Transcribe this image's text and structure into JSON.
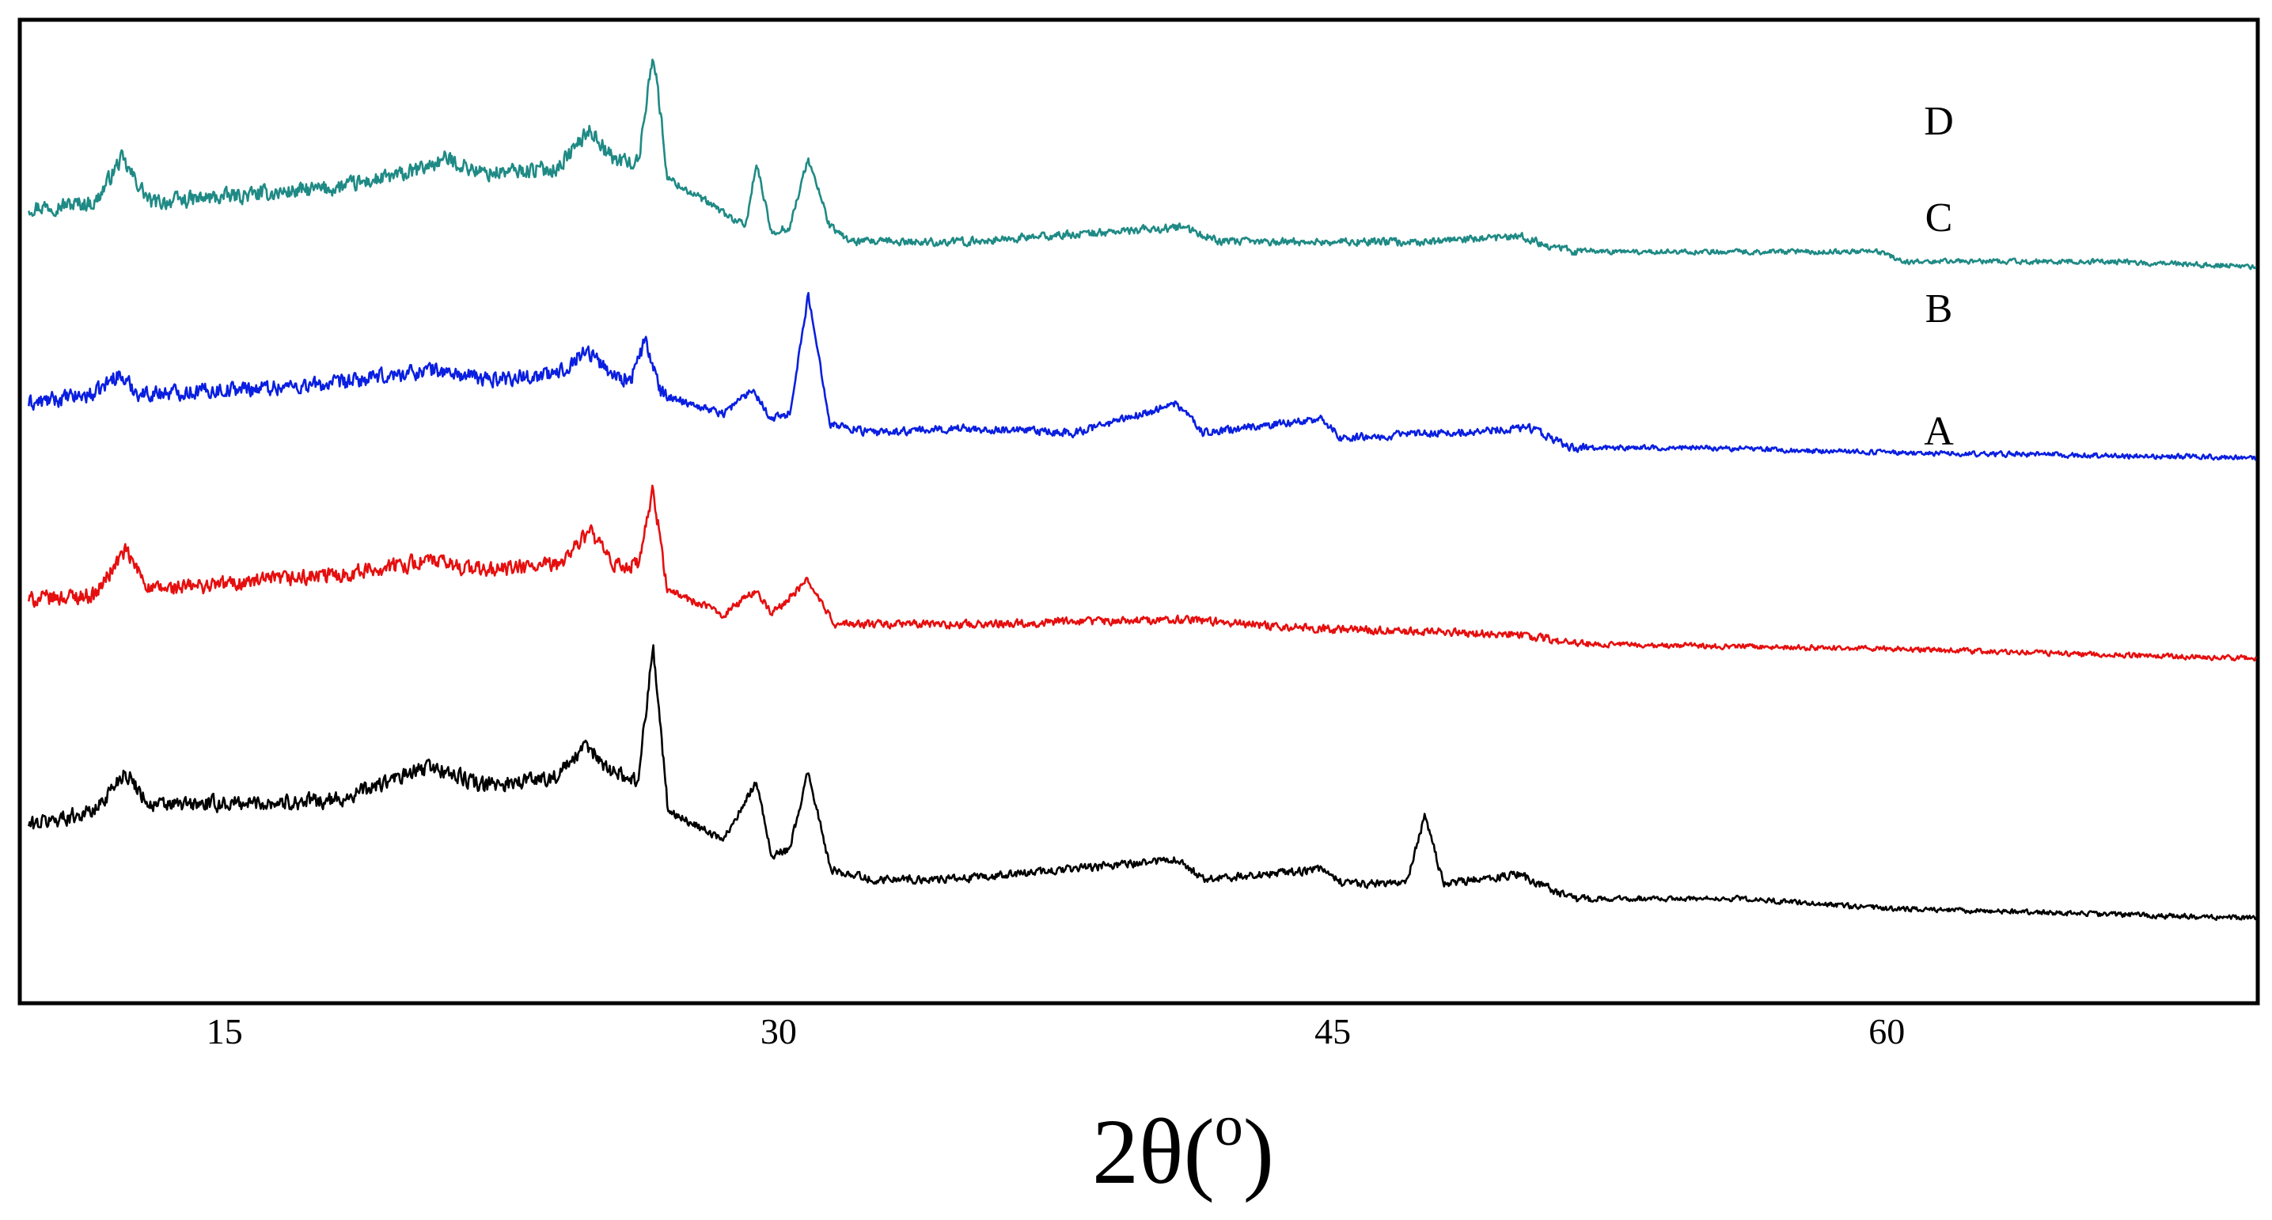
{
  "chart_data": {
    "type": "line",
    "title": "",
    "xlabel": "2θ(",
    "xlabel_superscript": "o",
    "xlabel_suffix": ")",
    "ylabel": "",
    "xlim": [
      9.5,
      70
    ],
    "ylim": [
      0,
      100
    ],
    "xticks": [
      15,
      30,
      45,
      60
    ],
    "xtick_labels": [
      "15",
      "30",
      "45",
      "60"
    ],
    "grid": false,
    "legend": "inline labels at right",
    "series": [
      {
        "name": "D",
        "color": "#1f8a85",
        "peaks": [
          {
            "x": 12.2,
            "h": 5
          },
          {
            "x": 20.6,
            "h": 3
          },
          {
            "x": 24.9,
            "h": 5
          },
          {
            "x": 26.6,
            "h": 12
          },
          {
            "x": 29.4,
            "h": 6
          },
          {
            "x": 30.8,
            "h": 7
          },
          {
            "x": 40.9,
            "h": 2
          },
          {
            "x": 47.5,
            "h": 1
          },
          {
            "x": 50.1,
            "h": 1
          },
          {
            "x": 59.8,
            "h": 1
          }
        ],
        "points": [
          [
            9.7,
            81
          ],
          [
            11.5,
            81.5
          ],
          [
            12.2,
            86
          ],
          [
            13,
            81.5
          ],
          [
            18,
            83
          ],
          [
            20,
            84.5
          ],
          [
            21,
            86
          ],
          [
            22,
            84.5
          ],
          [
            24,
            85
          ],
          [
            24.9,
            89
          ],
          [
            25.5,
            86
          ],
          [
            26.2,
            85.5
          ],
          [
            26.6,
            97
          ],
          [
            27,
            84
          ],
          [
            28.5,
            80.5
          ],
          [
            29.1,
            79
          ],
          [
            29.4,
            85.5
          ],
          [
            29.8,
            78.5
          ],
          [
            30.3,
            79
          ],
          [
            30.8,
            86
          ],
          [
            31.4,
            79
          ],
          [
            32,
            77.5
          ],
          [
            35,
            77.5
          ],
          [
            40.9,
            79
          ],
          [
            42,
            77.5
          ],
          [
            47.5,
            77.5
          ],
          [
            50.1,
            78
          ],
          [
            51.5,
            76.5
          ],
          [
            55,
            76.5
          ],
          [
            59.8,
            76.5
          ],
          [
            60.5,
            75.5
          ],
          [
            66,
            75.5
          ],
          [
            70,
            75
          ]
        ]
      },
      {
        "name": "C",
        "color": "#0a1fe0",
        "peaks": [
          {
            "x": 12.1,
            "h": 2
          },
          {
            "x": 20.6,
            "h": 1
          },
          {
            "x": 24.8,
            "h": 3
          },
          {
            "x": 26.4,
            "h": 4
          },
          {
            "x": 29.3,
            "h": 3
          },
          {
            "x": 30.8,
            "h": 11
          },
          {
            "x": 40.8,
            "h": 2.5
          },
          {
            "x": 44.7,
            "h": 1.5
          },
          {
            "x": 50.3,
            "h": 1
          }
        ],
        "points": [
          [
            9.7,
            61
          ],
          [
            11.5,
            62
          ],
          [
            12.1,
            64
          ],
          [
            12.7,
            62
          ],
          [
            18,
            63
          ],
          [
            20.6,
            64.5
          ],
          [
            22,
            63.5
          ],
          [
            24,
            64
          ],
          [
            24.8,
            66.5
          ],
          [
            25.5,
            64
          ],
          [
            26,
            63.5
          ],
          [
            26.4,
            67.5
          ],
          [
            26.8,
            62
          ],
          [
            28.5,
            60
          ],
          [
            29.3,
            62.5
          ],
          [
            29.8,
            59.5
          ],
          [
            30.3,
            60
          ],
          [
            30.8,
            72
          ],
          [
            31.4,
            59
          ],
          [
            32.5,
            58
          ],
          [
            35,
            58.5
          ],
          [
            38,
            58
          ],
          [
            40.8,
            61
          ],
          [
            41.5,
            58
          ],
          [
            44.7,
            59.5
          ],
          [
            45.2,
            57.5
          ],
          [
            50.3,
            58.5
          ],
          [
            51.5,
            56.5
          ],
          [
            55,
            56.5
          ],
          [
            60,
            56
          ],
          [
            70,
            55.5
          ]
        ]
      },
      {
        "name": "B",
        "color": "#e60f0f",
        "peaks": [
          {
            "x": 12.3,
            "h": 4
          },
          {
            "x": 20.5,
            "h": 1
          },
          {
            "x": 24.9,
            "h": 4
          },
          {
            "x": 26.6,
            "h": 9
          },
          {
            "x": 29.4,
            "h": 2.5
          },
          {
            "x": 30.8,
            "h": 4
          },
          {
            "x": 40.8,
            "h": 1
          }
        ],
        "points": [
          [
            9.7,
            41
          ],
          [
            11.5,
            41.5
          ],
          [
            12.3,
            46
          ],
          [
            13,
            42
          ],
          [
            18,
            43.5
          ],
          [
            20.5,
            45
          ],
          [
            22,
            44
          ],
          [
            24,
            44.5
          ],
          [
            24.9,
            48
          ],
          [
            25.5,
            44.5
          ],
          [
            26.2,
            44.5
          ],
          [
            26.6,
            52
          ],
          [
            27,
            42
          ],
          [
            28.5,
            39.5
          ],
          [
            29.4,
            42
          ],
          [
            29.8,
            39.5
          ],
          [
            30.8,
            43
          ],
          [
            31.5,
            38.5
          ],
          [
            35,
            38.5
          ],
          [
            40.8,
            39
          ],
          [
            45,
            38
          ],
          [
            50,
            37.5
          ],
          [
            51.5,
            36.5
          ],
          [
            60,
            36
          ],
          [
            70,
            35
          ]
        ]
      },
      {
        "name": "A",
        "color": "#000000",
        "peaks": [
          {
            "x": 12.3,
            "h": 4
          },
          {
            "x": 20.6,
            "h": 2
          },
          {
            "x": 24.8,
            "h": 3.5
          },
          {
            "x": 26.6,
            "h": 14
          },
          {
            "x": 29.4,
            "h": 6.5
          },
          {
            "x": 30.8,
            "h": 8
          },
          {
            "x": 40.8,
            "h": 2
          },
          {
            "x": 44.7,
            "h": 1.5
          },
          {
            "x": 47.5,
            "h": 7
          },
          {
            "x": 50,
            "h": 1
          },
          {
            "x": 56.1,
            "h": 1
          }
        ],
        "points": [
          [
            9.7,
            18
          ],
          [
            11.5,
            19.5
          ],
          [
            12.3,
            23.5
          ],
          [
            13,
            20
          ],
          [
            18,
            20.5
          ],
          [
            20.6,
            24
          ],
          [
            22,
            22
          ],
          [
            24,
            23
          ],
          [
            24.8,
            26
          ],
          [
            25.5,
            23.5
          ],
          [
            26.2,
            22.5
          ],
          [
            26.6,
            36.5
          ],
          [
            27,
            19.5
          ],
          [
            28.5,
            16.5
          ],
          [
            29.4,
            22.5
          ],
          [
            29.8,
            15
          ],
          [
            30.3,
            15.5
          ],
          [
            30.8,
            23.5
          ],
          [
            31.4,
            13.5
          ],
          [
            32.5,
            12.5
          ],
          [
            35,
            12.5
          ],
          [
            40.8,
            14.5
          ],
          [
            41.5,
            12.5
          ],
          [
            44.7,
            13.5
          ],
          [
            45.3,
            12
          ],
          [
            47,
            12
          ],
          [
            47.5,
            19
          ],
          [
            48,
            12
          ],
          [
            50,
            13
          ],
          [
            51.5,
            10.5
          ],
          [
            56.1,
            10.5
          ],
          [
            60,
            9.5
          ],
          [
            70,
            8.5
          ]
        ]
      }
    ]
  }
}
